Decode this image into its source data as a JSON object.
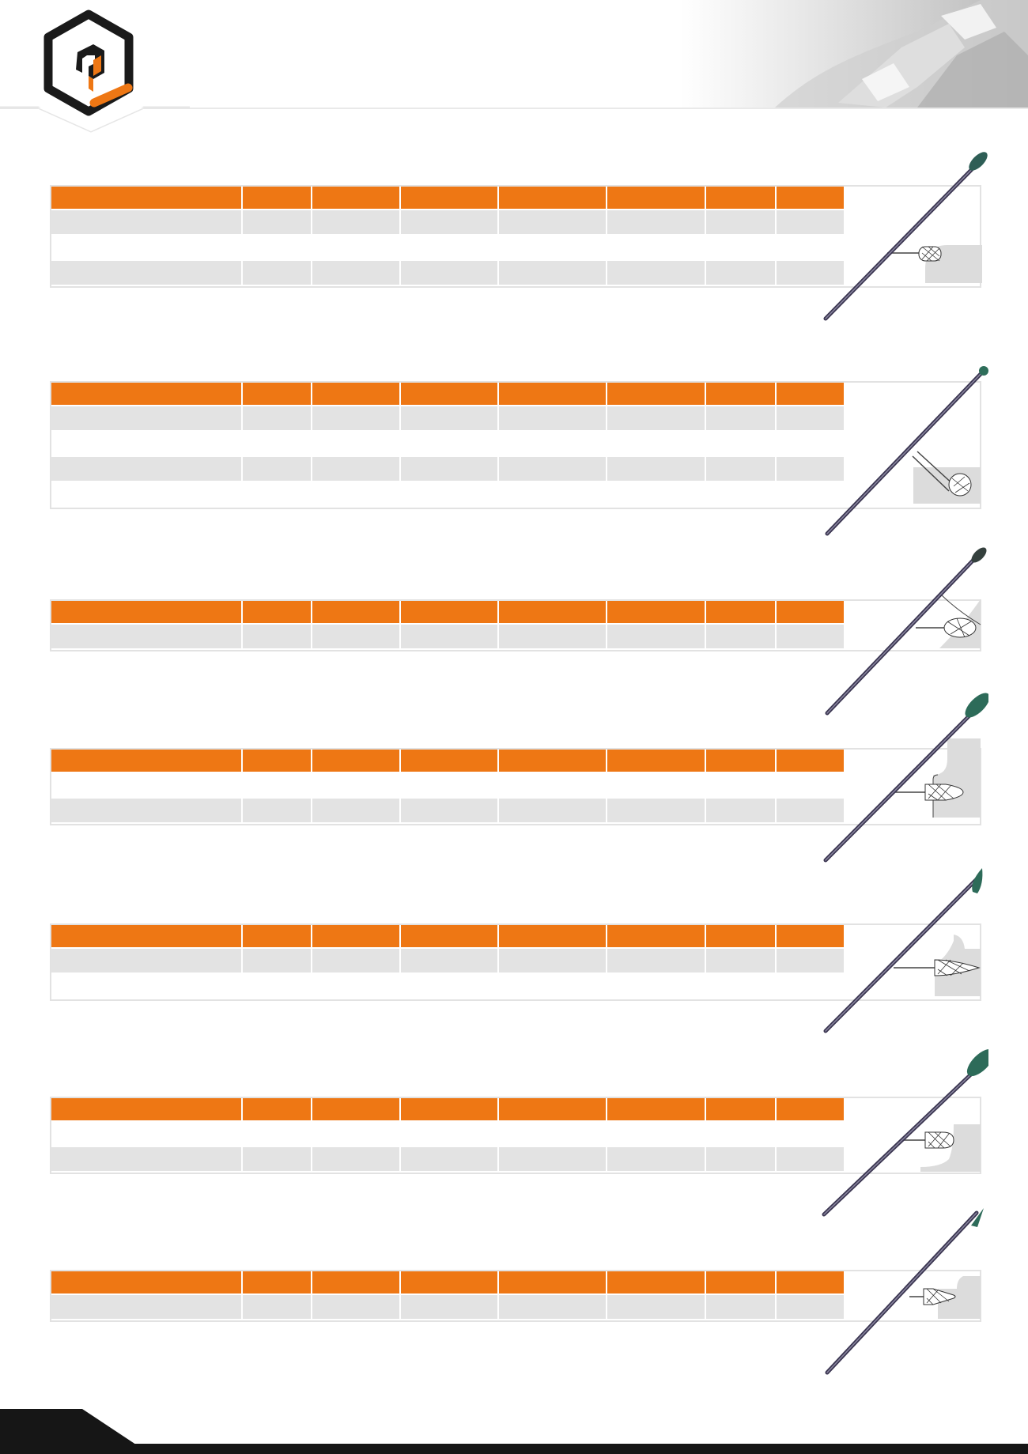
{
  "brand": {
    "logo_icon": "hexagon-bracket-logo",
    "accent_color": "#ee7714",
    "dark_color": "#1a1a1a"
  },
  "header": {
    "photo_icon": "carbide-burr-photo"
  },
  "colors": {
    "header_row": "#ee7714",
    "grey_row": "#e3e3e3",
    "white_row": "#ffffff"
  },
  "sections": [
    {
      "id": "s1",
      "rows": [
        "grey",
        "white",
        "grey"
      ],
      "diagram_icon": "cylinder-radius-end-burr-diagram"
    },
    {
      "id": "s2",
      "rows": [
        "grey",
        "white",
        "grey",
        "white"
      ],
      "diagram_icon": "ball-burr-diagram"
    },
    {
      "id": "s3",
      "rows": [
        "grey"
      ],
      "diagram_icon": "oval-burr-diagram"
    },
    {
      "id": "s4",
      "rows": [
        "white",
        "grey"
      ],
      "diagram_icon": "tree-burr-diagram"
    },
    {
      "id": "s5",
      "rows": [
        "grey",
        "white"
      ],
      "diagram_icon": "flame-burr-diagram"
    },
    {
      "id": "s6",
      "rows": [
        "white",
        "grey"
      ],
      "diagram_icon": "tree-radius-burr-diagram"
    },
    {
      "id": "s7",
      "rows": [
        "grey"
      ],
      "diagram_icon": "cone-burr-diagram"
    }
  ],
  "columns": 8,
  "footer": {
    "wedge_icon": "footer-wedge"
  }
}
